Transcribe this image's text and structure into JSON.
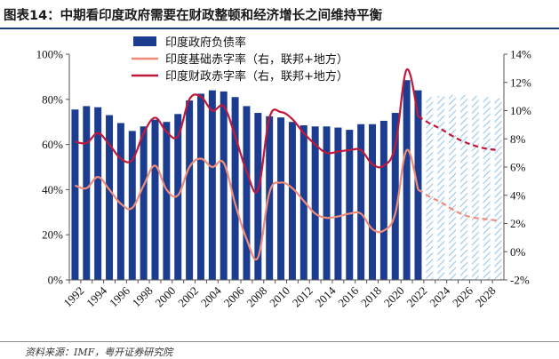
{
  "figure": {
    "title": "图表14：中期看印度政府需要在财政整顿和经济增长之间维持平衡",
    "source": "资料来源：IMF，粤开证券研究院"
  },
  "colors": {
    "bar": "#1c3d8f",
    "bar_forecast_stripe": "#a9cdee",
    "primary_deficit": "#f08c78",
    "fiscal_deficit": "#c0183a",
    "title_rule": "#1f3a7a"
  },
  "chart_data": {
    "type": "bar+line",
    "x": [
      1992,
      1993,
      1994,
      1995,
      1996,
      1997,
      1998,
      1999,
      2000,
      2001,
      2002,
      2003,
      2004,
      2005,
      2006,
      2007,
      2008,
      2009,
      2010,
      2011,
      2012,
      2013,
      2014,
      2015,
      2016,
      2017,
      2018,
      2019,
      2020,
      2021,
      2022,
      2023,
      2024,
      2025,
      2026,
      2027,
      2028,
      2029
    ],
    "x_tick_labels": [
      "1992",
      "1994",
      "1996",
      "1998",
      "2000",
      "2002",
      "2004",
      "2006",
      "2008",
      "2010",
      "2012",
      "2014",
      "2016",
      "2018",
      "2020",
      "2022",
      "2024",
      "2026",
      "2028"
    ],
    "forecast_start": 2023,
    "y_left": {
      "range": [
        0,
        100
      ],
      "ticks": [
        0,
        20,
        40,
        60,
        80,
        100
      ],
      "format": "%"
    },
    "y_right": {
      "range": [
        -2,
        14
      ],
      "ticks": [
        -2,
        0,
        2,
        4,
        6,
        8,
        10,
        12,
        14
      ],
      "format": "%"
    },
    "grid": false,
    "legend_position": "top",
    "series": [
      {
        "name": "印度政府负债率",
        "kind": "bar",
        "axis": "left",
        "values": [
          75.5,
          77.0,
          76.5,
          73.0,
          69.5,
          66.0,
          68.0,
          71.0,
          70.0,
          73.5,
          79.5,
          82.5,
          84.0,
          83.5,
          81.0,
          77.0,
          74.0,
          72.5,
          72.0,
          70.0,
          68.5,
          68.0,
          68.0,
          67.5,
          66.5,
          69.0,
          69.0,
          70.5,
          74.0,
          88.5,
          84.0,
          81.0,
          81.5,
          82.0,
          82.0,
          81.5,
          81.0,
          80.5
        ]
      },
      {
        "name": "印度基础赤字率（右，联邦+地方）",
        "kind": "line",
        "axis": "right",
        "values": [
          4.7,
          4.5,
          5.3,
          4.4,
          3.4,
          3.1,
          4.7,
          6.1,
          4.4,
          4.0,
          6.0,
          6.6,
          6.0,
          6.3,
          3.4,
          0.9,
          -0.4,
          4.2,
          4.9,
          4.5,
          3.6,
          2.7,
          2.4,
          2.5,
          2.7,
          2.7,
          1.6,
          1.5,
          2.7,
          7.2,
          4.4,
          3.9,
          3.5,
          3.0,
          2.6,
          2.4,
          2.3,
          2.2
        ]
      },
      {
        "name": "印度财政赤字率（右，联邦+地方）",
        "kind": "line",
        "axis": "right",
        "values": [
          7.8,
          7.7,
          8.4,
          7.6,
          6.6,
          6.5,
          8.4,
          9.5,
          8.5,
          8.2,
          10.8,
          11.0,
          10.0,
          10.3,
          8.2,
          5.7,
          4.4,
          9.5,
          9.9,
          9.4,
          8.4,
          7.6,
          7.0,
          7.1,
          7.2,
          7.2,
          6.2,
          6.1,
          7.5,
          12.9,
          9.6,
          9.1,
          8.7,
          8.2,
          7.8,
          7.5,
          7.3,
          7.2
        ]
      }
    ]
  }
}
